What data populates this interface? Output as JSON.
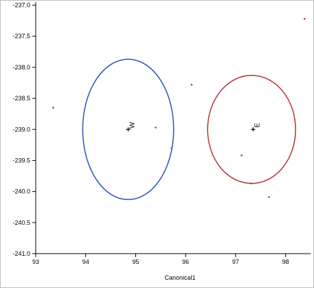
{
  "chart_data": {
    "type": "scatter",
    "xlabel": "Canonical1",
    "ylabel": "",
    "xlim": [
      93,
      98.5
    ],
    "ylim": [
      -241.0,
      -236.95
    ],
    "x_ticks": [
      93,
      94,
      95,
      96,
      97,
      98
    ],
    "x_tick_labels": [
      "93",
      "94",
      "95",
      "96",
      "97",
      "98"
    ],
    "y_ticks": [
      -237.0,
      -237.5,
      -238.0,
      -238.5,
      -239.0,
      -239.5,
      -240.0,
      -240.5,
      -241.0
    ],
    "y_tick_labels": [
      "-237.0",
      "-237.5",
      "-238.0",
      "-238.5",
      "-239.0",
      "-239.5",
      "-240.0",
      "-240.5",
      "-241.0"
    ],
    "grid": false,
    "colors": {
      "W": "#2a52be",
      "E": "#b8303a",
      "axis": "#000000"
    },
    "groups": [
      {
        "label": "W",
        "centroid": {
          "x": 94.85,
          "y": -239.0
        },
        "ellipse": {
          "cx": 94.85,
          "cy": -239.0,
          "rx": 0.91,
          "ry": 1.13
        }
      },
      {
        "label": "E",
        "centroid": {
          "x": 97.35,
          "y": -239.0
        },
        "ellipse": {
          "cx": 97.32,
          "cy": -239.0,
          "rx": 0.88,
          "ry": 0.87
        }
      }
    ],
    "points": [
      {
        "x": 93.35,
        "y": -238.65
      },
      {
        "x": 95.4,
        "y": -238.97
      },
      {
        "x": 95.72,
        "y": -239.3
      },
      {
        "x": 96.12,
        "y": -238.28
      },
      {
        "x": 97.12,
        "y": -239.42
      },
      {
        "x": 97.3,
        "y": -239.87
      },
      {
        "x": 97.67,
        "y": -240.09
      },
      {
        "x": 98.38,
        "y": -237.22
      }
    ]
  }
}
